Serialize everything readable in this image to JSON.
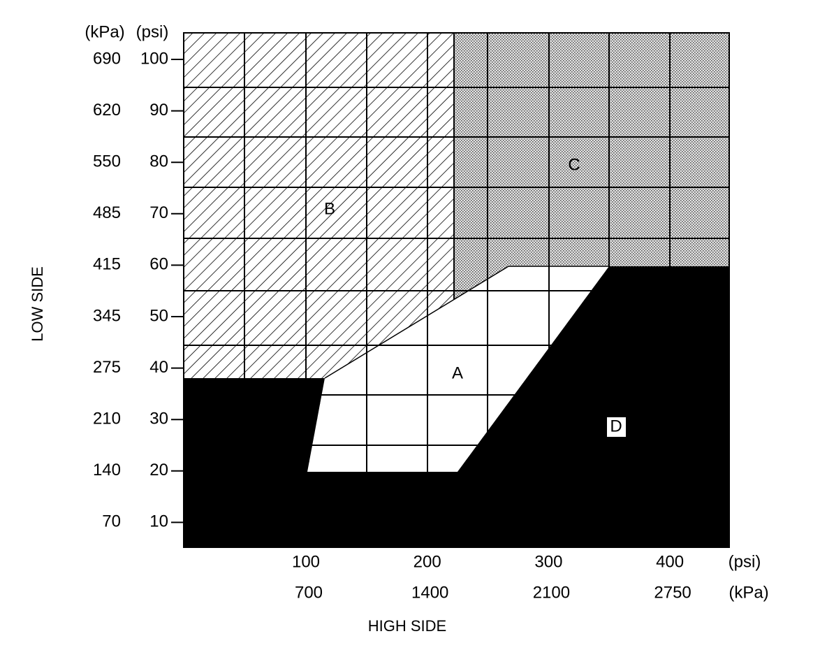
{
  "axes": {
    "y_title": "LOW SIDE",
    "x_title": "HIGH SIDE",
    "y_units": [
      "(kPa)",
      "(psi)"
    ],
    "x_units": [
      "(psi)",
      "(kPa)"
    ],
    "y_ticks": [
      {
        "kpa": 690,
        "psi": 100
      },
      {
        "kpa": 620,
        "psi": 90
      },
      {
        "kpa": 550,
        "psi": 80
      },
      {
        "kpa": 485,
        "psi": 70
      },
      {
        "kpa": 415,
        "psi": 60
      },
      {
        "kpa": 345,
        "psi": 50
      },
      {
        "kpa": 275,
        "psi": 40
      },
      {
        "kpa": 210,
        "psi": 30
      },
      {
        "kpa": 140,
        "psi": 20
      },
      {
        "kpa": 70,
        "psi": 10
      }
    ],
    "x_ticks": [
      {
        "psi": 100,
        "kpa": 700
      },
      {
        "psi": 200,
        "kpa": 1400
      },
      {
        "psi": 300,
        "kpa": 2100
      },
      {
        "psi": 400,
        "kpa": 2750
      }
    ]
  },
  "regions": {
    "a": "A",
    "b": "B",
    "c": "C",
    "d": "D"
  }
}
